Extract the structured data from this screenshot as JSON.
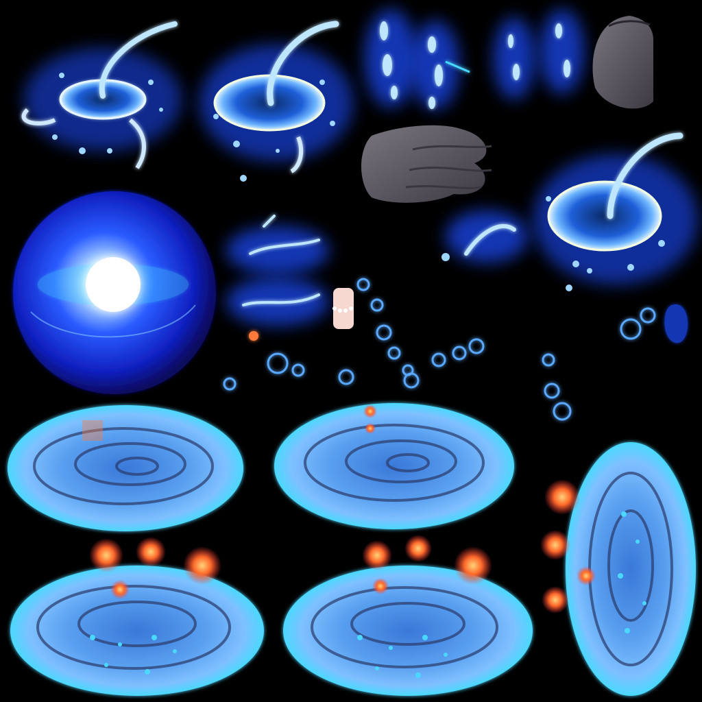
{
  "sheet": {
    "background": "#000000",
    "glow_color": "#2a55ff",
    "water_color": "#5aa8ff",
    "highlight_color": "#e8f6ff",
    "ember_color": "#ff7a3a",
    "smoke_color": "#5a5660"
  },
  "sprites": [
    {
      "id": "splash-ring-1",
      "kind": "water-splash"
    },
    {
      "id": "splash-ring-2",
      "kind": "water-splash"
    },
    {
      "id": "water-droplets-left",
      "kind": "droplets"
    },
    {
      "id": "water-droplets-right",
      "kind": "droplets"
    },
    {
      "id": "smoke-puff",
      "kind": "smoke"
    },
    {
      "id": "smoke-trail",
      "kind": "smoke"
    },
    {
      "id": "splash-ring-3",
      "kind": "water-splash"
    },
    {
      "id": "energy-orb",
      "kind": "orb"
    },
    {
      "id": "water-streaks",
      "kind": "streaks"
    },
    {
      "id": "small-bubbles",
      "kind": "bubbles"
    },
    {
      "id": "whirlpool-1",
      "kind": "vortex"
    },
    {
      "id": "whirlpool-2",
      "kind": "vortex"
    },
    {
      "id": "whirlpool-fire-1",
      "kind": "vortex-embers"
    },
    {
      "id": "whirlpool-fire-2",
      "kind": "vortex-embers"
    },
    {
      "id": "whirlpool-fire-tall",
      "kind": "vortex-embers"
    }
  ]
}
